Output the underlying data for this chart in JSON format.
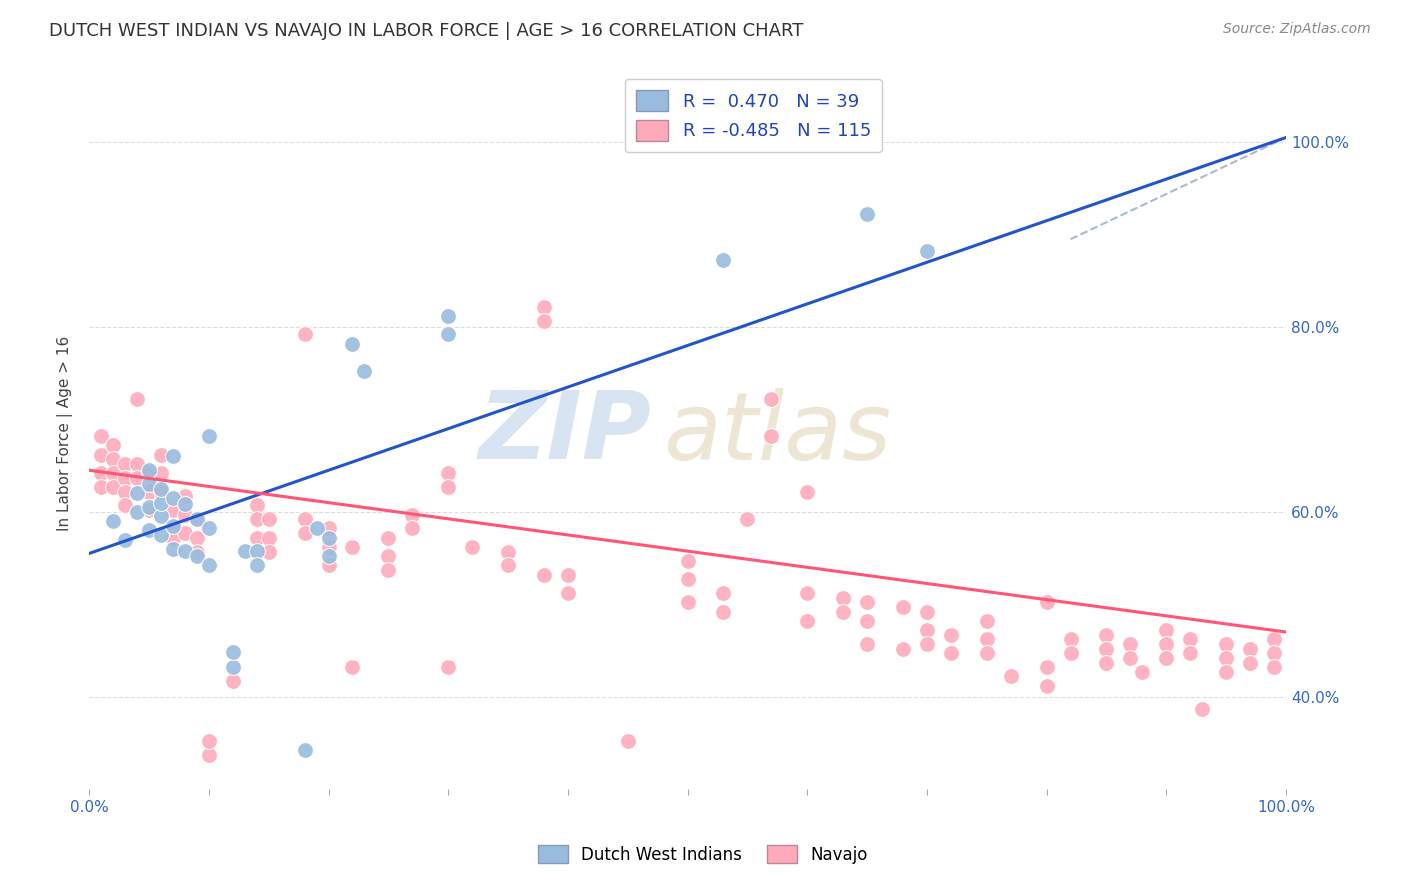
{
  "title": "DUTCH WEST INDIAN VS NAVAJO IN LABOR FORCE | AGE > 16 CORRELATION CHART",
  "source": "Source: ZipAtlas.com",
  "ylabel": "In Labor Force | Age > 16",
  "blue_R": 0.47,
  "blue_N": 39,
  "pink_R": -0.485,
  "pink_N": 115,
  "blue_color": "#99BBDD",
  "pink_color": "#FFAABB",
  "blue_line_color": "#2255CC",
  "pink_line_color": "#FF5577",
  "dashed_line_color": "#AABBCC",
  "watermark_zip": "ZIP",
  "watermark_atlas": "atlas",
  "blue_line_x": [
    0.0,
    1.0
  ],
  "blue_line_y": [
    0.555,
    1.005
  ],
  "pink_line_x": [
    0.0,
    1.0
  ],
  "pink_line_y": [
    0.645,
    0.47
  ],
  "dashed_line_x": [
    0.82,
    1.0
  ],
  "dashed_line_y": [
    0.895,
    1.005
  ],
  "blue_points": [
    [
      0.02,
      0.59
    ],
    [
      0.03,
      0.57
    ],
    [
      0.04,
      0.6
    ],
    [
      0.04,
      0.62
    ],
    [
      0.05,
      0.605
    ],
    [
      0.05,
      0.58
    ],
    [
      0.05,
      0.63
    ],
    [
      0.05,
      0.645
    ],
    [
      0.06,
      0.575
    ],
    [
      0.06,
      0.595
    ],
    [
      0.06,
      0.61
    ],
    [
      0.06,
      0.625
    ],
    [
      0.07,
      0.56
    ],
    [
      0.07,
      0.585
    ],
    [
      0.07,
      0.615
    ],
    [
      0.07,
      0.66
    ],
    [
      0.08,
      0.558
    ],
    [
      0.08,
      0.608
    ],
    [
      0.09,
      0.552
    ],
    [
      0.09,
      0.592
    ],
    [
      0.1,
      0.542
    ],
    [
      0.1,
      0.582
    ],
    [
      0.1,
      0.682
    ],
    [
      0.12,
      0.432
    ],
    [
      0.12,
      0.448
    ],
    [
      0.13,
      0.558
    ],
    [
      0.14,
      0.558
    ],
    [
      0.14,
      0.542
    ],
    [
      0.18,
      0.342
    ],
    [
      0.19,
      0.582
    ],
    [
      0.2,
      0.552
    ],
    [
      0.2,
      0.572
    ],
    [
      0.22,
      0.782
    ],
    [
      0.23,
      0.752
    ],
    [
      0.3,
      0.792
    ],
    [
      0.3,
      0.812
    ],
    [
      0.53,
      0.872
    ],
    [
      0.65,
      0.922
    ],
    [
      0.7,
      0.882
    ]
  ],
  "pink_points": [
    [
      0.01,
      0.682
    ],
    [
      0.01,
      0.662
    ],
    [
      0.01,
      0.642
    ],
    [
      0.01,
      0.627
    ],
    [
      0.02,
      0.672
    ],
    [
      0.02,
      0.657
    ],
    [
      0.02,
      0.642
    ],
    [
      0.02,
      0.627
    ],
    [
      0.03,
      0.652
    ],
    [
      0.03,
      0.637
    ],
    [
      0.03,
      0.622
    ],
    [
      0.03,
      0.607
    ],
    [
      0.04,
      0.722
    ],
    [
      0.04,
      0.652
    ],
    [
      0.04,
      0.637
    ],
    [
      0.05,
      0.642
    ],
    [
      0.05,
      0.622
    ],
    [
      0.05,
      0.602
    ],
    [
      0.06,
      0.662
    ],
    [
      0.06,
      0.642
    ],
    [
      0.06,
      0.622
    ],
    [
      0.07,
      0.602
    ],
    [
      0.07,
      0.582
    ],
    [
      0.07,
      0.572
    ],
    [
      0.08,
      0.617
    ],
    [
      0.08,
      0.597
    ],
    [
      0.08,
      0.577
    ],
    [
      0.09,
      0.592
    ],
    [
      0.09,
      0.572
    ],
    [
      0.09,
      0.557
    ],
    [
      0.1,
      0.337
    ],
    [
      0.1,
      0.352
    ],
    [
      0.12,
      0.417
    ],
    [
      0.14,
      0.607
    ],
    [
      0.14,
      0.592
    ],
    [
      0.14,
      0.572
    ],
    [
      0.15,
      0.592
    ],
    [
      0.15,
      0.572
    ],
    [
      0.15,
      0.557
    ],
    [
      0.18,
      0.792
    ],
    [
      0.18,
      0.592
    ],
    [
      0.18,
      0.577
    ],
    [
      0.2,
      0.582
    ],
    [
      0.2,
      0.562
    ],
    [
      0.2,
      0.542
    ],
    [
      0.22,
      0.432
    ],
    [
      0.22,
      0.562
    ],
    [
      0.25,
      0.572
    ],
    [
      0.25,
      0.552
    ],
    [
      0.25,
      0.537
    ],
    [
      0.27,
      0.597
    ],
    [
      0.27,
      0.582
    ],
    [
      0.3,
      0.432
    ],
    [
      0.3,
      0.642
    ],
    [
      0.3,
      0.627
    ],
    [
      0.32,
      0.562
    ],
    [
      0.35,
      0.557
    ],
    [
      0.35,
      0.542
    ],
    [
      0.38,
      0.532
    ],
    [
      0.38,
      0.822
    ],
    [
      0.38,
      0.807
    ],
    [
      0.4,
      0.532
    ],
    [
      0.4,
      0.512
    ],
    [
      0.45,
      0.352
    ],
    [
      0.5,
      0.547
    ],
    [
      0.5,
      0.527
    ],
    [
      0.5,
      0.502
    ],
    [
      0.53,
      0.512
    ],
    [
      0.53,
      0.492
    ],
    [
      0.55,
      0.592
    ],
    [
      0.57,
      0.722
    ],
    [
      0.57,
      0.682
    ],
    [
      0.6,
      0.622
    ],
    [
      0.6,
      0.512
    ],
    [
      0.6,
      0.482
    ],
    [
      0.63,
      0.507
    ],
    [
      0.63,
      0.492
    ],
    [
      0.65,
      0.502
    ],
    [
      0.65,
      0.482
    ],
    [
      0.65,
      0.457
    ],
    [
      0.68,
      0.497
    ],
    [
      0.68,
      0.452
    ],
    [
      0.7,
      0.492
    ],
    [
      0.7,
      0.472
    ],
    [
      0.7,
      0.457
    ],
    [
      0.72,
      0.467
    ],
    [
      0.72,
      0.447
    ],
    [
      0.75,
      0.482
    ],
    [
      0.75,
      0.462
    ],
    [
      0.75,
      0.447
    ],
    [
      0.77,
      0.422
    ],
    [
      0.8,
      0.502
    ],
    [
      0.8,
      0.432
    ],
    [
      0.8,
      0.412
    ],
    [
      0.82,
      0.462
    ],
    [
      0.82,
      0.447
    ],
    [
      0.85,
      0.467
    ],
    [
      0.85,
      0.452
    ],
    [
      0.85,
      0.437
    ],
    [
      0.87,
      0.457
    ],
    [
      0.87,
      0.442
    ],
    [
      0.88,
      0.427
    ],
    [
      0.9,
      0.472
    ],
    [
      0.9,
      0.457
    ],
    [
      0.9,
      0.442
    ],
    [
      0.92,
      0.462
    ],
    [
      0.92,
      0.447
    ],
    [
      0.93,
      0.387
    ],
    [
      0.95,
      0.457
    ],
    [
      0.95,
      0.442
    ],
    [
      0.95,
      0.427
    ],
    [
      0.97,
      0.452
    ],
    [
      0.97,
      0.437
    ],
    [
      0.99,
      0.462
    ],
    [
      0.99,
      0.447
    ],
    [
      0.99,
      0.432
    ]
  ],
  "xlim": [
    0.0,
    1.0
  ],
  "ylim": [
    0.3,
    1.07
  ],
  "background_color": "#ffffff",
  "grid_color": "#dddddd",
  "legend_label_blue": "Dutch West Indians",
  "legend_label_pink": "Navajo"
}
